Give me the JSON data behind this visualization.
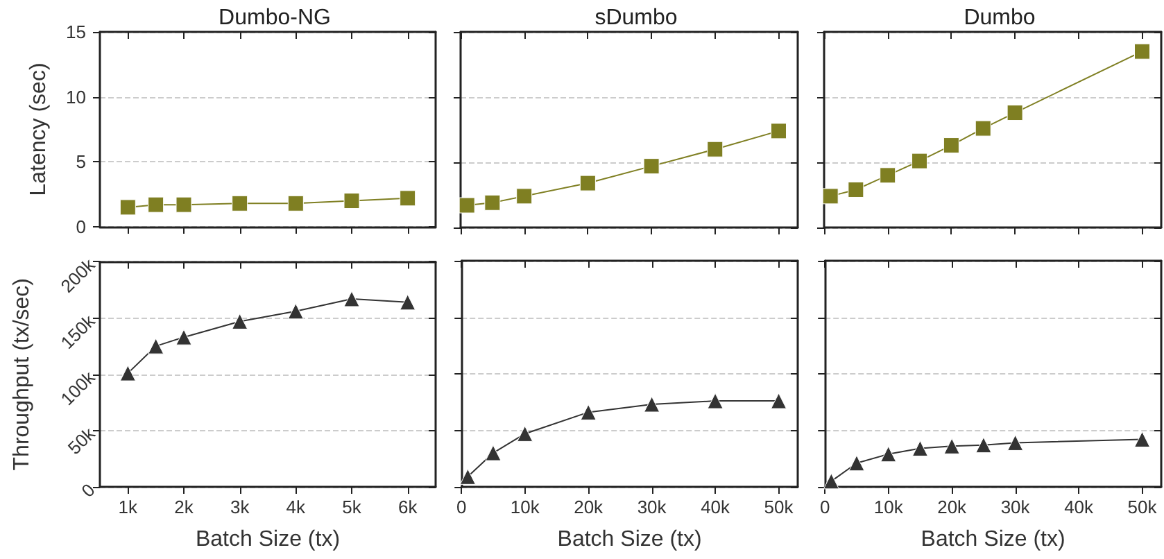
{
  "chart_data": [
    {
      "type": "line",
      "title": "Dumbo-NG",
      "ylabel": "Latency (sec)",
      "x": [
        1000,
        1500,
        2000,
        3000,
        4000,
        5000,
        6000
      ],
      "series": [
        {
          "color": "#7f7f22",
          "values": [
            1.5,
            1.7,
            1.7,
            1.8,
            1.8,
            2.0,
            2.2
          ]
        }
      ],
      "xlim": [
        500,
        6500
      ],
      "xticks": [
        1000,
        2000,
        3000,
        4000,
        5000,
        6000
      ],
      "ylim": [
        0,
        15
      ],
      "yticks": [
        0,
        5,
        10,
        15
      ],
      "grid": "y",
      "marker": "square",
      "tick_labels": "y"
    },
    {
      "type": "line",
      "title": "sDumbo",
      "x": [
        1000,
        5000,
        10000,
        20000,
        30000,
        40000,
        50000
      ],
      "series": [
        {
          "color": "#7f7f22",
          "values": [
            1.7,
            1.9,
            2.4,
            3.4,
            4.7,
            6.0,
            7.4
          ]
        }
      ],
      "xlim": [
        0,
        53000
      ],
      "xticks": [
        0,
        10000,
        20000,
        30000,
        40000,
        50000
      ],
      "ylim": [
        0,
        15
      ],
      "yticks": [
        0,
        5,
        10,
        15
      ],
      "grid": "y",
      "marker": "square",
      "tick_labels": false
    },
    {
      "type": "line",
      "title": "Dumbo",
      "x": [
        1000,
        5000,
        10000,
        15000,
        20000,
        25000,
        30000,
        50000
      ],
      "series": [
        {
          "color": "#7f7f22",
          "values": [
            2.4,
            2.9,
            4.0,
            5.1,
            6.3,
            7.6,
            8.8,
            13.5
          ]
        }
      ],
      "xlim": [
        0,
        53000
      ],
      "xticks": [
        0,
        10000,
        20000,
        30000,
        40000,
        50000
      ],
      "ylim": [
        0,
        15
      ],
      "yticks": [
        0,
        5,
        10,
        15
      ],
      "grid": "y",
      "marker": "square",
      "tick_labels": false
    },
    {
      "type": "line",
      "xlabel": "Batch Size (tx)",
      "ylabel": "Throughput (tx/sec)",
      "x": [
        1000,
        1500,
        2000,
        3000,
        4000,
        5000,
        6000
      ],
      "series": [
        {
          "color": "#333333",
          "values": [
            101000,
            125000,
            133000,
            147000,
            156000,
            167000,
            164000
          ]
        }
      ],
      "xlim": [
        500,
        6500
      ],
      "xticks": [
        {
          "value": 1000,
          "label": "1k"
        },
        {
          "value": 2000,
          "label": "2k"
        },
        {
          "value": 3000,
          "label": "3k"
        },
        {
          "value": 4000,
          "label": "4k"
        },
        {
          "value": 5000,
          "label": "5k"
        },
        {
          "value": 6000,
          "label": "6k"
        }
      ],
      "ylim": [
        0,
        200000
      ],
      "yticks": [
        0,
        {
          "value": 50000,
          "label": "50k"
        },
        {
          "value": 100000,
          "label": "100k"
        },
        {
          "value": 150000,
          "label": "150k"
        },
        {
          "value": 200000,
          "label": "200k"
        }
      ],
      "grid": "y",
      "marker": "triangle"
    },
    {
      "type": "line",
      "xlabel": "Batch Size (tx)",
      "x": [
        1000,
        5000,
        10000,
        20000,
        30000,
        40000,
        50000
      ],
      "series": [
        {
          "color": "#333333",
          "values": [
            9000,
            30000,
            47000,
            66000,
            73000,
            76000,
            76000
          ]
        }
      ],
      "xlim": [
        0,
        53000
      ],
      "xticks": [
        0,
        {
          "value": 10000,
          "label": "10k"
        },
        {
          "value": 20000,
          "label": "20k"
        },
        {
          "value": 30000,
          "label": "30k"
        },
        {
          "value": 40000,
          "label": "40k"
        },
        {
          "value": 50000,
          "label": "50k"
        }
      ],
      "ylim": [
        0,
        200000
      ],
      "yticks": [
        0,
        50000,
        100000,
        150000,
        200000
      ],
      "grid": "y",
      "marker": "triangle",
      "tick_labels": "x"
    },
    {
      "type": "line",
      "xlabel": "Batch Size (tx)",
      "x": [
        1000,
        5000,
        10000,
        15000,
        20000,
        25000,
        30000,
        50000
      ],
      "series": [
        {
          "color": "#333333",
          "values": [
            5000,
            21000,
            29000,
            34000,
            36000,
            37000,
            39000,
            42000
          ]
        }
      ],
      "xlim": [
        0,
        53000
      ],
      "xticks": [
        0,
        {
          "value": 10000,
          "label": "10k"
        },
        {
          "value": 20000,
          "label": "20k"
        },
        {
          "value": 30000,
          "label": "30k"
        },
        {
          "value": 40000,
          "label": "40k"
        },
        {
          "value": 50000,
          "label": "50k"
        }
      ],
      "ylim": [
        0,
        200000
      ],
      "yticks": [
        0,
        50000,
        100000,
        150000,
        200000
      ],
      "grid": "y",
      "marker": "triangle",
      "tick_labels": "x"
    }
  ]
}
